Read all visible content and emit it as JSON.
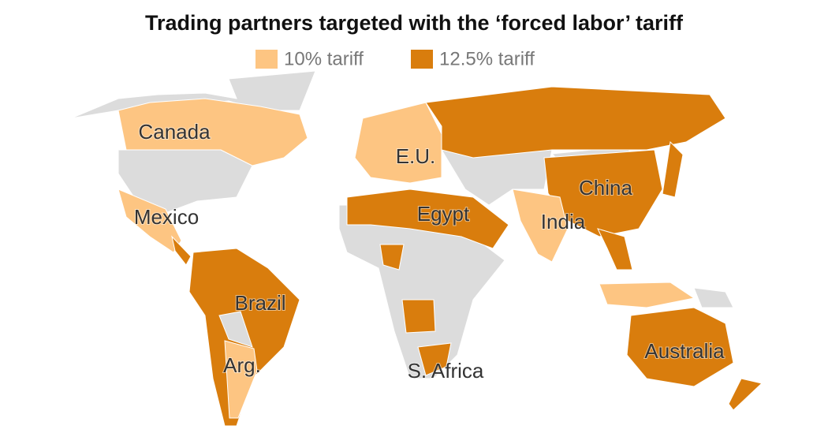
{
  "title": "Trading partners targeted with the ‘forced labor’ tariff",
  "legend": [
    {
      "label": "10% tariff",
      "color": "#fdc582"
    },
    {
      "label": "12.5% tariff",
      "color": "#d97d0d"
    }
  ],
  "labels": [
    "Canada",
    "E.U.",
    "China",
    "Mexico",
    "Egypt",
    "India",
    "Brazil",
    "Arg.",
    "Australia",
    "S. Africa"
  ]
}
